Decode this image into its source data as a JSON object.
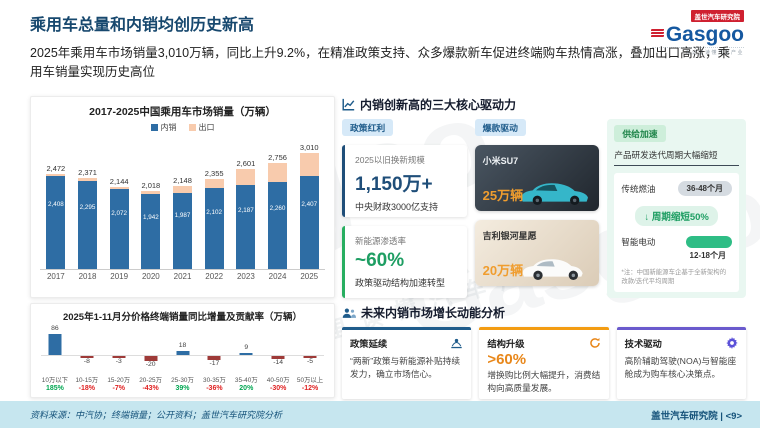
{
  "header": {
    "title": "乘用车总量和内销均创历史新高",
    "subtitle": "2025年乘用车市场销量3,010万辆，同比上升9.2%，在精准政策支持、众多爆款新车促进终端购车热情高涨，叠加出口高涨，乘用车销量实现历史高位",
    "logo": {
      "badge": "盖世汽车研究院",
      "text": "Gasgoo",
      "tagline": "在这里读懂汽车产业"
    }
  },
  "watermark": {
    "text": "Gasgoo",
    "text_cn": "在这里读懂汽车产业"
  },
  "chart_data": [
    {
      "type": "bar",
      "stacked": true,
      "title": "2017-2025中国乘用车市场销量（万辆）",
      "categories": [
        "2017",
        "2018",
        "2019",
        "2020",
        "2021",
        "2022",
        "2023",
        "2024",
        "2025"
      ],
      "series": [
        {
          "name": "内销",
          "color": "#2e6da4",
          "values": [
            2408,
            2295,
            2072,
            1942,
            1987,
            2102,
            2187,
            2260,
            2407
          ]
        },
        {
          "name": "出口",
          "color": "#f8cbad",
          "values": [
            64,
            76,
            72,
            76,
            161,
            253,
            414,
            496,
            603
          ]
        }
      ],
      "totals": [
        2472,
        2371,
        2144,
        2018,
        2148,
        2355,
        2601,
        2756,
        3010
      ],
      "total_labels": [
        "2,472",
        "2,371",
        "2,144",
        "2,018",
        "2,148",
        "2,355",
        "2,601",
        "2,756",
        "3,010"
      ],
      "domestic_labels": [
        "2,408",
        "2,295",
        "2,072",
        "1,942",
        "1,987",
        "2,102",
        "2,187",
        "2,260",
        "2,407"
      ],
      "ylim": [
        0,
        3200
      ],
      "legend_position": "top",
      "grid": false
    },
    {
      "type": "bar",
      "title": "2025年1-11月分价格终端销量同比增量及贡献率（万辆）",
      "categories": [
        "10万以下",
        "10-15万",
        "15-20万",
        "20-25万",
        "25-30万",
        "30-35万",
        "35-40万",
        "40-50万",
        "50万以上"
      ],
      "values": [
        86,
        -8,
        -3,
        -20,
        18,
        -17,
        9,
        -14,
        -5
      ],
      "contribution_rates": [
        "185%",
        "-18%",
        "-7%",
        "-43%",
        "39%",
        "-36%",
        "20%",
        "-30%",
        "-12%"
      ],
      "positive_color": "#2e6da4",
      "negative_color": "#9e3a38",
      "rate_positive_color": "#00a651",
      "rate_negative_color": "#e02020",
      "grid": false
    }
  ],
  "drivers": {
    "title": "内销创新高的三大核心驱动力",
    "policy": {
      "badge": "政策红利",
      "cards": [
        {
          "label": "2025以旧换新规模",
          "value": "1,150万+",
          "desc": "中央财政3000亿支持"
        },
        {
          "label": "新能源渗透率",
          "value": "~60%",
          "desc": "政策驱动结构加速转型"
        }
      ]
    },
    "hits": {
      "badge": "爆款驱动",
      "cars": [
        {
          "name": "小米SU7",
          "value": "25万辆"
        },
        {
          "name": "吉利银河星愿",
          "value": "20万辆"
        }
      ]
    },
    "supply": {
      "badge": "供给加速",
      "subtitle": "产品研发迭代周期大幅缩短",
      "fuel_label": "传统燃油",
      "fuel_value": "36-48个月",
      "shrink_label": "↓ 周期缩短50%",
      "ev_label": "智能电动",
      "ev_value": "12-18个月",
      "note": "*注：中国新能源车企基于全新架构的改款/迭代平均周期"
    }
  },
  "future": {
    "title": "未来内销市场增长动能分析",
    "cards": [
      {
        "title": "政策延续",
        "body": "“两新”政策与新能源补贴持续发力，确立市场信心。"
      },
      {
        "title": "结构升级",
        "highlight": ">60%",
        "body": "增换购比例大幅提升，消费结构向高质量发展。"
      },
      {
        "title": "技术驱动",
        "body": "高阶辅助驾驶(NOA)与智能座舱成为购车核心决策点。"
      }
    ]
  },
  "footer": {
    "source": "资料来源：中汽协；终端销量；公开资料；盖世汽车研究院分析",
    "right": "盖世汽车研究院 | <9>"
  }
}
